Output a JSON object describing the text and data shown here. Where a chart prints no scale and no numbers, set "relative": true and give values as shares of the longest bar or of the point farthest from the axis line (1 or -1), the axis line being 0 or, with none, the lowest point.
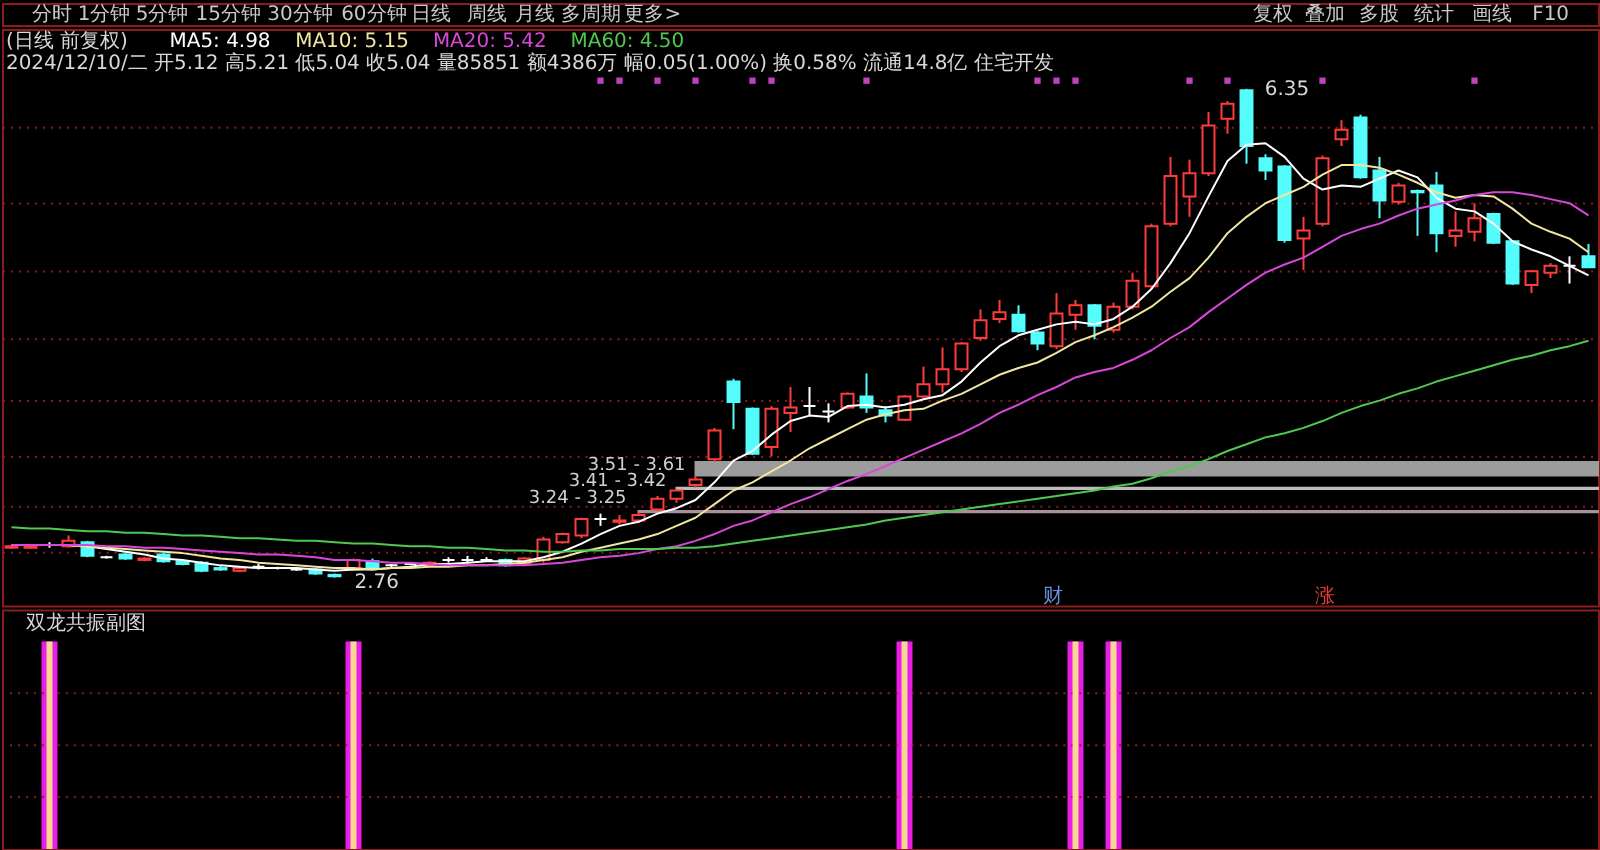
{
  "chart_data": [
    {
      "type": "other",
      "annotations": [
        "分时",
        "1分钟",
        "5分钟",
        "15分钟",
        "30分钟",
        "60分钟",
        "日线",
        "周线",
        "月线",
        "多周期",
        "更多>",
        "复权",
        "叠加",
        "多股",
        "统计",
        "画线",
        "F10"
      ]
    },
    {
      "type": "candlestick",
      "title": "(日线 前复权)",
      "subtitle": "2024/12/10/二 开5.12 高5.21 低5.04 收5.04 量85851 额4386万 幅0.05(1.00%) 换0.58% 流通14.8亿 住宅开发",
      "categories": [
        null,
        null,
        null,
        null,
        null,
        null,
        null,
        null,
        null,
        null,
        null,
        null,
        null,
        null,
        null,
        null,
        null,
        null,
        null,
        null,
        null,
        null,
        null,
        null,
        null,
        null,
        null,
        null,
        null,
        null,
        null,
        null,
        null,
        null,
        null,
        null,
        null,
        null,
        null,
        null,
        null,
        null,
        null,
        null,
        null,
        null,
        null,
        null,
        null,
        null,
        null,
        null,
        null,
        null,
        null,
        null,
        null,
        null,
        null,
        null,
        null,
        null,
        null,
        null,
        null,
        null,
        null,
        null,
        null,
        null,
        null,
        null,
        null,
        null,
        null,
        null,
        null,
        null,
        null,
        null,
        null,
        null,
        null,
        null
      ],
      "ohlc": [
        [
          2.98,
          3.0,
          2.97,
          2.99
        ],
        [
          2.98,
          3.0,
          2.97,
          2.99
        ],
        [
          3.0,
          3.02,
          2.98,
          3.0
        ],
        [
          2.99,
          3.07,
          2.98,
          3.03
        ],
        [
          3.02,
          3.03,
          2.91,
          2.92
        ],
        [
          2.91,
          2.92,
          2.9,
          2.91
        ],
        [
          2.93,
          2.94,
          2.89,
          2.9
        ],
        [
          2.89,
          2.91,
          2.88,
          2.9
        ],
        [
          2.93,
          2.94,
          2.87,
          2.88
        ],
        [
          2.88,
          2.89,
          2.85,
          2.86
        ],
        [
          2.87,
          2.88,
          2.8,
          2.81
        ],
        [
          2.83,
          2.85,
          2.81,
          2.82
        ],
        [
          2.81,
          2.84,
          2.8,
          2.83
        ],
        [
          2.84,
          2.86,
          2.82,
          2.84
        ],
        [
          2.83,
          2.84,
          2.82,
          2.83
        ],
        [
          2.82,
          2.83,
          2.81,
          2.82
        ],
        [
          2.82,
          2.83,
          2.78,
          2.79
        ],
        [
          2.78,
          2.79,
          2.76,
          2.77
        ],
        [
          2.82,
          2.9,
          2.81,
          2.89
        ],
        [
          2.88,
          2.9,
          2.82,
          2.83
        ],
        [
          2.85,
          2.86,
          2.83,
          2.85
        ],
        [
          2.86,
          2.87,
          2.85,
          2.86
        ],
        [
          2.85,
          2.88,
          2.84,
          2.87
        ],
        [
          2.89,
          2.91,
          2.87,
          2.89
        ],
        [
          2.89,
          2.92,
          2.87,
          2.89
        ],
        [
          2.89,
          2.91,
          2.88,
          2.89
        ],
        [
          2.89,
          2.9,
          2.84,
          2.85
        ],
        [
          2.86,
          2.91,
          2.85,
          2.9
        ],
        [
          2.89,
          3.06,
          2.87,
          3.04
        ],
        [
          3.02,
          3.09,
          3.01,
          3.08
        ],
        [
          3.07,
          3.2,
          3.05,
          3.19
        ],
        [
          3.19,
          3.23,
          3.14,
          3.19
        ],
        [
          3.17,
          3.22,
          3.15,
          3.18
        ],
        [
          3.18,
          3.24,
          3.16,
          3.22
        ],
        [
          3.26,
          3.36,
          3.25,
          3.34
        ],
        [
          3.34,
          3.41,
          3.31,
          3.4
        ],
        [
          3.44,
          3.51,
          3.42,
          3.48
        ],
        [
          3.63,
          3.86,
          3.61,
          3.84
        ],
        [
          4.2,
          4.22,
          3.85,
          4.05
        ],
        [
          4.0,
          4.01,
          3.66,
          3.67
        ],
        [
          3.72,
          4.02,
          3.65,
          4.0
        ],
        [
          3.97,
          4.16,
          3.83,
          4.01
        ],
        [
          4.02,
          4.16,
          3.95,
          4.02
        ],
        [
          3.98,
          4.04,
          3.9,
          3.98
        ],
        [
          4.01,
          4.12,
          4.0,
          4.11
        ],
        [
          4.09,
          4.26,
          3.97,
          4.01
        ],
        [
          3.99,
          4.02,
          3.9,
          3.95
        ],
        [
          3.92,
          4.1,
          3.91,
          4.09
        ],
        [
          4.09,
          4.31,
          4.08,
          4.18
        ],
        [
          4.18,
          4.45,
          4.12,
          4.29
        ],
        [
          4.29,
          4.49,
          4.27,
          4.48
        ],
        [
          4.52,
          4.73,
          4.5,
          4.65
        ],
        [
          4.66,
          4.8,
          4.63,
          4.71
        ],
        [
          4.69,
          4.76,
          4.56,
          4.57
        ],
        [
          4.56,
          4.57,
          4.43,
          4.48
        ],
        [
          4.46,
          4.85,
          4.44,
          4.7
        ],
        [
          4.69,
          4.8,
          4.58,
          4.76
        ],
        [
          4.76,
          4.77,
          4.51,
          4.61
        ],
        [
          4.58,
          4.78,
          4.56,
          4.75
        ],
        [
          4.75,
          5.0,
          4.73,
          4.94
        ],
        [
          4.9,
          5.36,
          4.88,
          5.34
        ],
        [
          5.36,
          5.85,
          5.34,
          5.71
        ],
        [
          5.56,
          5.83,
          5.41,
          5.73
        ],
        [
          5.73,
          6.18,
          5.71,
          6.08
        ],
        [
          6.13,
          6.26,
          6.02,
          6.24
        ],
        [
          6.34,
          6.35,
          5.8,
          5.93
        ],
        [
          5.84,
          5.87,
          5.68,
          5.75
        ],
        [
          5.78,
          5.79,
          5.22,
          5.24
        ],
        [
          5.25,
          5.41,
          5.02,
          5.31
        ],
        [
          5.36,
          5.86,
          5.34,
          5.84
        ],
        [
          5.98,
          6.12,
          5.93,
          6.05
        ],
        [
          6.14,
          6.16,
          5.69,
          5.7
        ],
        [
          5.75,
          5.85,
          5.4,
          5.53
        ],
        [
          5.52,
          5.66,
          5.5,
          5.64
        ],
        [
          5.6,
          5.61,
          5.27,
          5.59
        ],
        [
          5.64,
          5.74,
          5.15,
          5.29
        ],
        [
          5.27,
          5.45,
          5.19,
          5.31
        ],
        [
          5.3,
          5.51,
          5.23,
          5.4
        ],
        [
          5.43,
          5.44,
          5.21,
          5.22
        ],
        [
          5.23,
          5.24,
          4.91,
          4.92
        ],
        [
          4.91,
          5.02,
          4.85,
          5.01
        ],
        [
          5.0,
          5.07,
          4.96,
          5.05
        ],
        [
          5.05,
          5.12,
          4.92,
          5.05
        ],
        [
          5.12,
          5.21,
          5.04,
          5.04
        ]
      ],
      "colors": [
        "#ff3c3c",
        "#ff3c3c",
        "#ffffff",
        "#ff3c3c",
        "#54fcfc",
        "#ffffff",
        "#54fcfc",
        "#ff3c3c",
        "#54fcfc",
        "#54fcfc",
        "#54fcfc",
        "#54fcfc",
        "#ff3c3c",
        "#ffffff",
        "#ffffff",
        "#ffffff",
        "#54fcfc",
        "#54fcfc",
        "#ff3c3c",
        "#54fcfc",
        "#ffffff",
        "#ffffff",
        "#ff3c3c",
        "#ffffff",
        "#ffffff",
        "#ffffff",
        "#54fcfc",
        "#ff3c3c",
        "#ff3c3c",
        "#ff3c3c",
        "#ff3c3c",
        "#ffffff",
        "#ff3c3c",
        "#ff3c3c",
        "#ff3c3c",
        "#ff3c3c",
        "#ff3c3c",
        "#ff3c3c",
        "#54fcfc",
        "#54fcfc",
        "#ff3c3c",
        "#ff3c3c",
        "#ffffff",
        "#ffffff",
        "#ff3c3c",
        "#54fcfc",
        "#54fcfc",
        "#ff3c3c",
        "#ff3c3c",
        "#ff3c3c",
        "#ff3c3c",
        "#ff3c3c",
        "#ff3c3c",
        "#54fcfc",
        "#54fcfc",
        "#ff3c3c",
        "#ff3c3c",
        "#54fcfc",
        "#ff3c3c",
        "#ff3c3c",
        "#ff3c3c",
        "#ff3c3c",
        "#ff3c3c",
        "#ff3c3c",
        "#ff3c3c",
        "#54fcfc",
        "#54fcfc",
        "#54fcfc",
        "#ff3c3c",
        "#ff3c3c",
        "#ff3c3c",
        "#54fcfc",
        "#54fcfc",
        "#ff3c3c",
        "#54fcfc",
        "#54fcfc",
        "#ff3c3c",
        "#ff3c3c",
        "#54fcfc",
        "#54fcfc",
        "#ff3c3c",
        "#ff3c3c",
        "#ffffff",
        "#54fcfc"
      ],
      "series": [
        {
          "name": "MA5: 4.98",
          "type": "line",
          "color": "#ffffff",
          "values": [
            3.0,
            3.0,
            3.0,
            3.0,
            2.99,
            2.97,
            2.95,
            2.93,
            2.9,
            2.89,
            2.87,
            2.85,
            2.84,
            2.83,
            2.83,
            2.83,
            2.82,
            2.81,
            2.82,
            2.82,
            2.83,
            2.84,
            2.86,
            2.86,
            2.87,
            2.88,
            2.88,
            2.88,
            2.91,
            2.95,
            3.01,
            3.08,
            3.14,
            3.17,
            3.23,
            3.27,
            3.33,
            3.46,
            3.62,
            3.69,
            3.81,
            3.91,
            3.95,
            3.94,
            4.02,
            4.03,
            4.01,
            4.03,
            4.07,
            4.1,
            4.2,
            4.34,
            4.46,
            4.54,
            4.58,
            4.62,
            4.64,
            4.62,
            4.66,
            4.75,
            4.88,
            5.07,
            5.29,
            5.56,
            5.82,
            5.94,
            5.95,
            5.85,
            5.69,
            5.61,
            5.64,
            5.63,
            5.69,
            5.75,
            5.7,
            5.55,
            5.47,
            5.45,
            5.36,
            5.23,
            5.17,
            5.12,
            5.05,
            4.98
          ]
        },
        {
          "name": "MA10: 5.15",
          "type": "line",
          "color": "#f0e6a0",
          "values": [
            null,
            null,
            3.0,
            3.0,
            2.99,
            2.98,
            2.97,
            2.96,
            2.95,
            2.94,
            2.92,
            2.9,
            2.89,
            2.87,
            2.86,
            2.85,
            2.84,
            2.83,
            2.83,
            2.82,
            2.83,
            2.83,
            2.84,
            2.84,
            2.85,
            2.85,
            2.86,
            2.87,
            2.89,
            2.91,
            2.95,
            2.98,
            3.01,
            3.04,
            3.08,
            3.14,
            3.2,
            3.3,
            3.4,
            3.46,
            3.54,
            3.62,
            3.71,
            3.78,
            3.85,
            3.92,
            3.96,
            3.99,
            4.0,
            4.06,
            4.11,
            4.18,
            4.25,
            4.3,
            4.34,
            4.41,
            4.49,
            4.54,
            4.6,
            4.67,
            4.75,
            4.86,
            4.96,
            5.11,
            5.29,
            5.41,
            5.51,
            5.57,
            5.63,
            5.72,
            5.79,
            5.79,
            5.77,
            5.72,
            5.66,
            5.59,
            5.55,
            5.57,
            5.56,
            5.47,
            5.36,
            5.3,
            5.25,
            5.15
          ]
        },
        {
          "name": "MA20: 5.42",
          "type": "line",
          "color": "#d848d8",
          "values": [
            3.0,
            3.0,
            3.0,
            3.0,
            3.0,
            2.99,
            2.99,
            2.98,
            2.98,
            2.97,
            2.96,
            2.95,
            2.94,
            2.93,
            2.93,
            2.92,
            2.91,
            2.89,
            2.89,
            2.88,
            2.87,
            2.87,
            2.86,
            2.85,
            2.85,
            2.85,
            2.85,
            2.85,
            2.86,
            2.87,
            2.89,
            2.91,
            2.92,
            2.94,
            2.97,
            2.99,
            3.03,
            3.08,
            3.14,
            3.18,
            3.24,
            3.3,
            3.35,
            3.41,
            3.47,
            3.52,
            3.58,
            3.64,
            3.7,
            3.76,
            3.82,
            3.89,
            3.97,
            4.03,
            4.1,
            4.16,
            4.23,
            4.27,
            4.3,
            4.36,
            4.43,
            4.52,
            4.6,
            4.71,
            4.81,
            4.91,
            5.0,
            5.06,
            5.11,
            5.19,
            5.27,
            5.32,
            5.36,
            5.42,
            5.47,
            5.5,
            5.53,
            5.57,
            5.59,
            5.59,
            5.57,
            5.54,
            5.51,
            5.42
          ]
        },
        {
          "name": "MA60: 4.50",
          "type": "line",
          "color": "#50c850",
          "values": [
            3.13,
            3.12,
            3.12,
            3.11,
            3.1,
            3.1,
            3.09,
            3.09,
            3.08,
            3.07,
            3.07,
            3.06,
            3.05,
            3.05,
            3.04,
            3.03,
            3.03,
            3.02,
            3.01,
            3.01,
            3.0,
            2.99,
            2.99,
            2.98,
            2.98,
            2.97,
            2.96,
            2.96,
            2.95,
            2.95,
            2.96,
            2.96,
            2.97,
            2.97,
            2.97,
            2.98,
            2.98,
            2.99,
            3.01,
            3.03,
            3.05,
            3.07,
            3.09,
            3.11,
            3.13,
            3.15,
            3.18,
            3.2,
            3.22,
            3.24,
            3.26,
            3.28,
            3.3,
            3.32,
            3.34,
            3.36,
            3.38,
            3.4,
            3.43,
            3.45,
            3.49,
            3.54,
            3.58,
            3.63,
            3.69,
            3.74,
            3.79,
            3.82,
            3.86,
            3.91,
            3.97,
            4.02,
            4.06,
            4.11,
            4.15,
            4.2,
            4.24,
            4.28,
            4.32,
            4.36,
            4.39,
            4.43,
            4.46,
            4.5
          ]
        },
        {
          "type": "scatter",
          "marker": "square",
          "color": "#c040c0",
          "values": [
            null,
            null,
            null,
            null,
            null,
            null,
            null,
            null,
            null,
            null,
            null,
            null,
            null,
            null,
            null,
            null,
            null,
            null,
            null,
            null,
            null,
            null,
            null,
            null,
            null,
            null,
            null,
            null,
            null,
            null,
            null,
            6.41,
            6.41,
            null,
            6.41,
            null,
            6.41,
            null,
            null,
            6.41,
            6.41,
            null,
            null,
            null,
            null,
            6.41,
            null,
            null,
            null,
            null,
            null,
            null,
            null,
            null,
            6.41,
            6.41,
            6.41,
            null,
            null,
            null,
            null,
            null,
            6.41,
            null,
            6.41,
            null,
            null,
            null,
            null,
            6.41,
            null,
            null,
            null,
            null,
            null,
            null,
            null,
            6.41,
            null,
            null,
            null,
            null,
            null,
            null
          ]
        }
      ],
      "bands": [
        {
          "axis": "y",
          "from": 3.51,
          "to": 3.61,
          "label": "3.51 - 3.61",
          "color": "#9c9c9c"
        },
        {
          "axis": "y",
          "from": 3.41,
          "to": 3.42,
          "label": "3.41 - 3.42",
          "color": "#bcbcbc"
        },
        {
          "axis": "y",
          "from": 3.24,
          "to": 3.25,
          "label": "3.24 - 3.25",
          "color": "#a8909c"
        }
      ],
      "annotations": [
        "6.35",
        {
          "text": "2.76",
          "y": 2.76
        },
        "财",
        "涨"
      ],
      "yticks": [
        {
          "value": 6.07,
          "label": null
        },
        {
          "value": 5.52,
          "label": null
        },
        {
          "value": 5.01,
          "label": null
        },
        {
          "value": 4.52,
          "label": null
        },
        {
          "value": 4.06,
          "label": null
        },
        {
          "value": 3.65,
          "label": null
        },
        {
          "value": 3.29,
          "label": null
        },
        {
          "value": 2.95,
          "label": null
        }
      ],
      "tick_labels": false,
      "grid": "y",
      "legend": "top left"
    },
    {
      "type": "bar",
      "title": "双龙共振副图",
      "relative": true,
      "tick_labels": false,
      "categories": [
        null,
        null,
        null,
        null,
        null,
        null,
        null,
        null,
        null,
        null,
        null,
        null,
        null,
        null,
        null,
        null,
        null,
        null,
        null,
        null,
        null,
        null,
        null,
        null,
        null,
        null,
        null,
        null,
        null,
        null,
        null,
        null,
        null,
        null,
        null,
        null,
        null,
        null,
        null,
        null,
        null,
        null,
        null,
        null,
        null,
        null,
        null,
        null,
        null,
        null,
        null,
        null,
        null,
        null,
        null,
        null,
        null,
        null,
        null,
        null,
        null,
        null,
        null,
        null,
        null,
        null,
        null,
        null,
        null,
        null,
        null,
        null,
        null,
        null,
        null,
        null,
        null,
        null,
        null,
        null,
        null,
        null,
        null,
        null
      ],
      "series": [
        {
          "color": "#e81ee8",
          "values": [
            null,
            null,
            1,
            null,
            null,
            null,
            null,
            null,
            null,
            null,
            null,
            null,
            null,
            null,
            null,
            null,
            null,
            null,
            1,
            null,
            null,
            null,
            null,
            null,
            null,
            null,
            null,
            null,
            null,
            null,
            null,
            null,
            null,
            null,
            null,
            null,
            null,
            null,
            null,
            null,
            null,
            null,
            null,
            null,
            null,
            null,
            null,
            1,
            null,
            null,
            null,
            null,
            null,
            null,
            null,
            null,
            1,
            null,
            1,
            null,
            null,
            null,
            null,
            null,
            null,
            null,
            null,
            null,
            null,
            null,
            null,
            null,
            null,
            null,
            null,
            null,
            null,
            null,
            null,
            null,
            null,
            null,
            null,
            null
          ]
        },
        {
          "color": "#f8d890",
          "values": [
            null,
            null,
            1,
            null,
            null,
            null,
            null,
            null,
            null,
            null,
            null,
            null,
            null,
            null,
            null,
            null,
            null,
            null,
            1,
            null,
            null,
            null,
            null,
            null,
            null,
            null,
            null,
            null,
            null,
            null,
            null,
            null,
            null,
            null,
            null,
            null,
            null,
            null,
            null,
            null,
            null,
            null,
            null,
            null,
            null,
            null,
            null,
            1,
            null,
            null,
            null,
            null,
            null,
            null,
            null,
            null,
            1,
            null,
            1,
            null,
            null,
            null,
            null,
            null,
            null,
            null,
            null,
            null,
            null,
            null,
            null,
            null,
            null,
            null,
            null,
            null,
            null,
            null,
            null,
            null,
            null,
            null,
            null,
            null
          ]
        }
      ],
      "ref_lines": [
        {
          "axis": "y",
          "value": 0.75,
          "color": "#8a1c1c",
          "line_style": "dotted"
        },
        {
          "axis": "y",
          "value": 0.5,
          "color": "#8a1c1c",
          "line_style": "dotted"
        },
        {
          "axis": "y",
          "value": 0.25,
          "color": "#8a1c1c",
          "line_style": "dotted"
        }
      ]
    }
  ]
}
